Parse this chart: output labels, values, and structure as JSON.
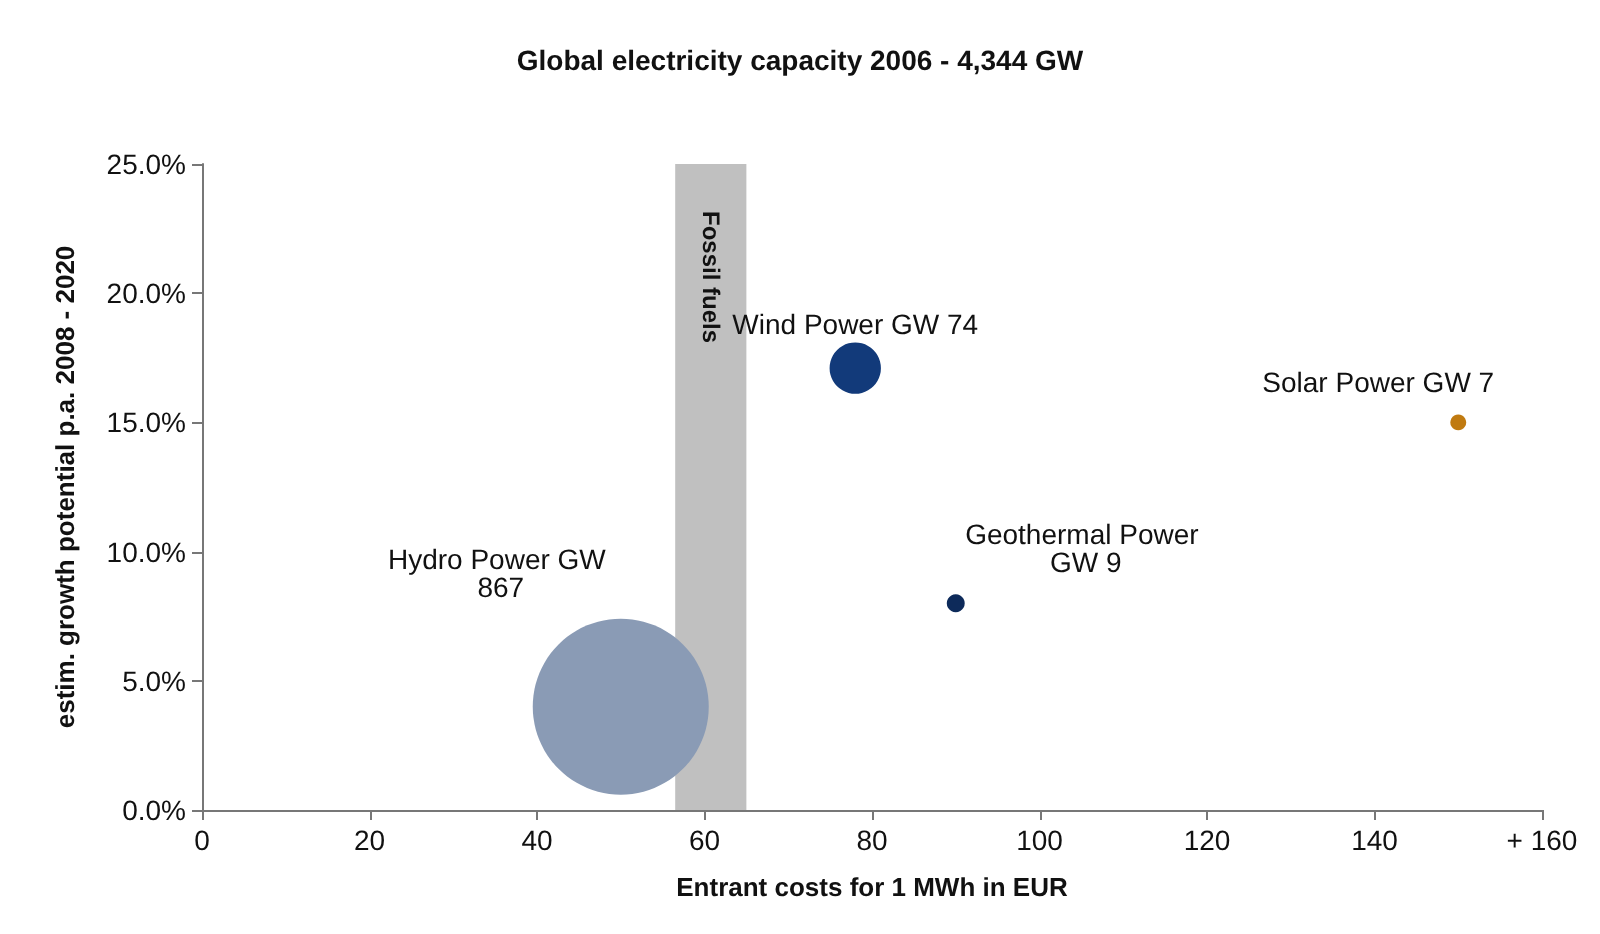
{
  "chart_data": {
    "type": "bubble",
    "title": "Global electricity capacity 2006 - 4,344 GW",
    "xlabel": "Entrant costs for 1 MWh in EUR",
    "ylabel": "estim. growth potential p.a. 2008 - 2020",
    "xlim": [
      0,
      160
    ],
    "xticks": [
      0,
      20,
      40,
      60,
      80,
      100,
      120,
      140,
      {
        "value": 160,
        "label": "+ 160"
      }
    ],
    "ylim": [
      0,
      25
    ],
    "yticks": [
      {
        "value": 0,
        "label": "0.0%"
      },
      {
        "value": 5,
        "label": "5.0%"
      },
      {
        "value": 10,
        "label": "10.0%"
      },
      {
        "value": 15,
        "label": "15.0%"
      },
      {
        "value": 20,
        "label": "20.0%"
      },
      {
        "value": 25,
        "label": "25.0%"
      }
    ],
    "series": [
      {
        "name": "Hydro Power GW 867",
        "color": "#8a9bb5",
        "x": [
          50
        ],
        "values": [
          4.0
        ],
        "sizes": [
          1
        ]
      },
      {
        "name": "Wind Power GW 74",
        "color": "#123a7a",
        "x": [
          78
        ],
        "values": [
          17.1
        ],
        "sizes": [
          0.085
        ]
      },
      {
        "name": "Geothermal Power GW 9",
        "color": "#0d2a5a",
        "x": [
          90
        ],
        "values": [
          8.0
        ],
        "sizes": [
          0.0104
        ]
      },
      {
        "name": "Solar Power GW 7",
        "color": "#c07a10",
        "x": [
          150
        ],
        "values": [
          15.0
        ],
        "sizes": [
          0.0081
        ]
      }
    ],
    "bands": [
      {
        "axis": "x",
        "from": 56.5,
        "to": 65,
        "label": "Fossil fuels",
        "color": "#c0c0c0"
      }
    ],
    "grid": false,
    "legend": false,
    "marker": "circle"
  }
}
